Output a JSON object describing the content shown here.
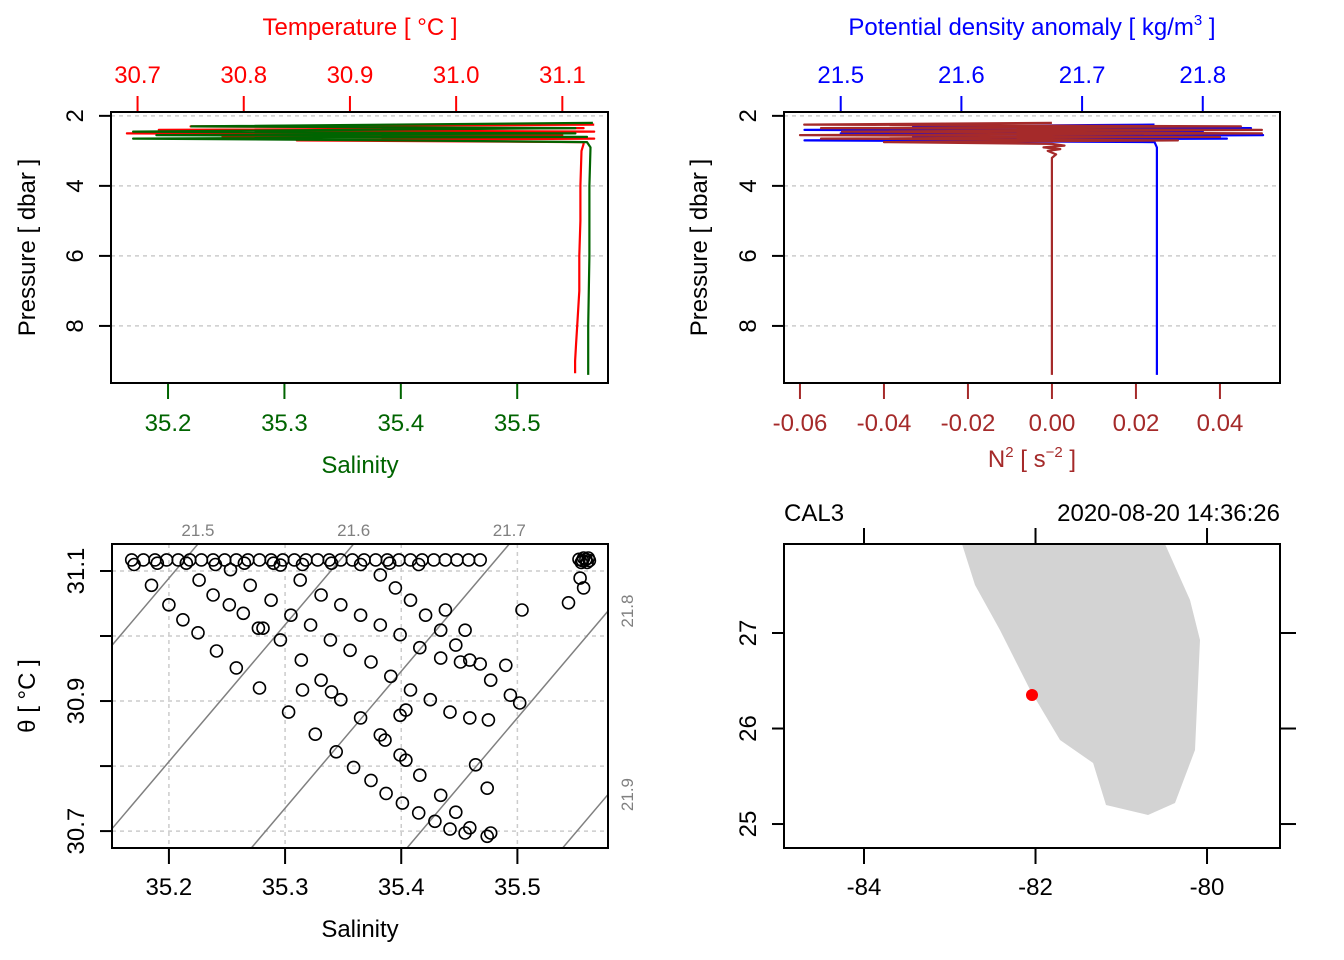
{
  "chart_data": [
    {
      "type": "line",
      "y_axis": {
        "label": "Pressure [ dbar ]",
        "range": [
          9.63,
          1.89
        ],
        "ticks": [
          2,
          4,
          6,
          8
        ],
        "tick_labels": [
          "2",
          "4",
          "6",
          "8"
        ],
        "grid": true
      },
      "top_axis": {
        "label": "Temperature [ °C ]",
        "color": "#ff0000",
        "range": [
          30.675,
          31.143
        ],
        "ticks": [
          30.7,
          30.8,
          30.9,
          31.0,
          31.1
        ],
        "tick_labels": [
          "30.7",
          "30.8",
          "30.9",
          "31.0",
          "31.1"
        ]
      },
      "bottom_axis": {
        "label": "Salinity",
        "color": "#006400",
        "range": [
          35.151,
          35.578
        ],
        "ticks": [
          35.2,
          35.3,
          35.4,
          35.5
        ],
        "tick_labels": [
          "35.2",
          "35.3",
          "35.4",
          "35.5"
        ]
      },
      "series": [
        {
          "axis": "top",
          "color": "#ff0000",
          "points": [
            [
              2.25,
              31.13
            ],
            [
              2.3,
              30.75
            ],
            [
              2.35,
              31.12
            ],
            [
              2.4,
              30.72
            ],
            [
              2.45,
              31.13
            ],
            [
              2.5,
              30.69
            ],
            [
              2.55,
              31.1
            ],
            [
              2.6,
              30.78
            ],
            [
              2.65,
              31.13
            ],
            [
              2.7,
              30.85
            ],
            [
              2.75,
              31.12
            ],
            [
              2.8,
              31.12
            ],
            [
              3.0,
              31.118
            ],
            [
              4,
              31.117
            ],
            [
              5,
              31.117
            ],
            [
              6,
              31.116
            ],
            [
              7,
              31.116
            ],
            [
              8,
              31.114
            ],
            [
              8.5,
              31.113
            ],
            [
              9,
              31.112
            ],
            [
              9.35,
              31.112
            ]
          ]
        },
        {
          "axis": "bottom",
          "color": "#006400",
          "points": [
            [
              2.2,
              35.565
            ],
            [
              2.3,
              35.22
            ],
            [
              2.35,
              35.55
            ],
            [
              2.45,
              35.17
            ],
            [
              2.5,
              35.55
            ],
            [
              2.55,
              35.19
            ],
            [
              2.6,
              35.56
            ],
            [
              2.65,
              35.17
            ],
            [
              2.7,
              35.4
            ],
            [
              2.75,
              35.56
            ],
            [
              2.9,
              35.563
            ],
            [
              4,
              35.562
            ],
            [
              6,
              35.562
            ],
            [
              8,
              35.561
            ],
            [
              9.4,
              35.561
            ]
          ]
        }
      ]
    },
    {
      "type": "line",
      "y_axis": {
        "label": "Pressure [ dbar ]",
        "range": [
          9.63,
          1.89
        ],
        "ticks": [
          2,
          4,
          6,
          8
        ],
        "tick_labels": [
          "2",
          "4",
          "6",
          "8"
        ],
        "grid": true
      },
      "top_axis": {
        "label_parts": [
          "Potential density anomaly [ kg/m",
          "3",
          " ]"
        ],
        "color": "#0000ff",
        "range": [
          21.453,
          21.864
        ],
        "ticks": [
          21.5,
          21.6,
          21.7,
          21.8
        ],
        "tick_labels": [
          "21.5",
          "21.6",
          "21.7",
          "21.8"
        ]
      },
      "bottom_axis": {
        "label_parts": [
          "N",
          "2",
          " [ s",
          "−2",
          " ]"
        ],
        "color": "#a52a2a",
        "range": [
          -0.0638,
          0.0543
        ],
        "ticks": [
          -0.06,
          -0.04,
          -0.02,
          0.0,
          0.02,
          0.04
        ],
        "tick_labels": [
          "-0.06",
          "-0.04",
          "-0.02",
          "0.00",
          "0.02",
          "0.04"
        ]
      },
      "series": [
        {
          "axis": "top",
          "color": "#0000ff",
          "points": [
            [
              2.25,
              21.76
            ],
            [
              2.3,
              21.56
            ],
            [
              2.35,
              21.84
            ],
            [
              2.4,
              21.47
            ],
            [
              2.45,
              21.8
            ],
            [
              2.5,
              21.5
            ],
            [
              2.55,
              21.85
            ],
            [
              2.6,
              21.56
            ],
            [
              2.65,
              21.82
            ],
            [
              2.7,
              21.47
            ],
            [
              2.75,
              21.76
            ],
            [
              2.9,
              21.762
            ],
            [
              4,
              21.762
            ],
            [
              6,
              21.762
            ],
            [
              8,
              21.762
            ],
            [
              9.4,
              21.762
            ]
          ]
        },
        {
          "axis": "bottom",
          "color": "#a52a2a",
          "points": [
            [
              2.2,
              0.0
            ],
            [
              2.25,
              -0.059
            ],
            [
              2.3,
              0.045
            ],
            [
              2.35,
              -0.055
            ],
            [
              2.4,
              0.05
            ],
            [
              2.45,
              -0.05
            ],
            [
              2.5,
              0.05
            ],
            [
              2.55,
              -0.06
            ],
            [
              2.6,
              0.04
            ],
            [
              2.65,
              -0.055
            ],
            [
              2.7,
              0.03
            ],
            [
              2.75,
              -0.04
            ],
            [
              2.8,
              0.0
            ],
            [
              2.85,
              0.003
            ],
            [
              2.9,
              -0.002
            ],
            [
              2.95,
              0.002
            ],
            [
              3.0,
              -0.001
            ],
            [
              3.1,
              0.001
            ],
            [
              3.2,
              0.0
            ],
            [
              6,
              0.0
            ],
            [
              9.4,
              0.0
            ]
          ]
        }
      ]
    },
    {
      "type": "scatter",
      "xlabel": "Salinity",
      "ylabel": "θ [ °C ]",
      "xlim": [
        35.151,
        35.578
      ],
      "ylim": [
        30.674,
        31.1415
      ],
      "x_ticks": [
        35.2,
        35.3,
        35.4,
        35.5
      ],
      "x_tick_labels": [
        "35.2",
        "35.3",
        "35.4",
        "35.5"
      ],
      "y_ticks": [
        30.7,
        30.8,
        30.9,
        31.0,
        31.1
      ],
      "y_tick_labels": [
        "30.7",
        "",
        "30.9",
        "",
        "31.1"
      ],
      "grid": true,
      "isopycnals": [
        {
          "level": 21.5,
          "label": "21.5",
          "label_side": "top"
        },
        {
          "level": 21.6,
          "label": "21.6",
          "label_side": "top"
        },
        {
          "level": 21.7,
          "label": "21.7",
          "label_side": "top"
        },
        {
          "level": 21.8,
          "label": "21.8",
          "label_side": "right"
        },
        {
          "level": 21.9,
          "label": "21.9",
          "label_side": "right"
        }
      ],
      "points": [
        [
          35.168,
          31.117
        ],
        [
          35.178,
          31.117
        ],
        [
          35.188,
          31.117
        ],
        [
          35.198,
          31.117
        ],
        [
          35.208,
          31.117
        ],
        [
          35.218,
          31.117
        ],
        [
          35.228,
          31.117
        ],
        [
          35.238,
          31.117
        ],
        [
          35.248,
          31.117
        ],
        [
          35.258,
          31.117
        ],
        [
          35.268,
          31.117
        ],
        [
          35.278,
          31.117
        ],
        [
          35.288,
          31.117
        ],
        [
          35.298,
          31.117
        ],
        [
          35.308,
          31.117
        ],
        [
          35.318,
          31.117
        ],
        [
          35.328,
          31.117
        ],
        [
          35.338,
          31.117
        ],
        [
          35.348,
          31.117
        ],
        [
          35.358,
          31.117
        ],
        [
          35.368,
          31.117
        ],
        [
          35.378,
          31.117
        ],
        [
          35.388,
          31.117
        ],
        [
          35.398,
          31.117
        ],
        [
          35.408,
          31.117
        ],
        [
          35.418,
          31.117
        ],
        [
          35.428,
          31.117
        ],
        [
          35.438,
          31.117
        ],
        [
          35.448,
          31.117
        ],
        [
          35.458,
          31.117
        ],
        [
          35.468,
          31.117
        ],
        [
          35.17,
          31.11
        ],
        [
          35.19,
          31.112
        ],
        [
          35.215,
          31.112
        ],
        [
          35.24,
          31.11
        ],
        [
          35.265,
          31.112
        ],
        [
          35.29,
          31.112
        ],
        [
          35.315,
          31.11
        ],
        [
          35.34,
          31.112
        ],
        [
          35.365,
          31.11
        ],
        [
          35.39,
          31.112
        ],
        [
          35.415,
          31.11
        ],
        [
          35.553,
          31.118
        ],
        [
          35.556,
          31.116
        ],
        [
          35.559,
          31.118
        ],
        [
          35.562,
          31.116
        ],
        [
          35.557,
          31.12
        ],
        [
          35.561,
          31.12
        ],
        [
          35.555,
          31.113
        ],
        [
          35.56,
          31.113
        ],
        [
          35.185,
          31.078
        ],
        [
          35.2,
          31.048
        ],
        [
          35.212,
          31.025
        ],
        [
          35.225,
          31.005
        ],
        [
          35.241,
          30.977
        ],
        [
          35.258,
          30.951
        ],
        [
          35.278,
          30.92
        ],
        [
          35.303,
          30.883
        ],
        [
          35.326,
          30.849
        ],
        [
          35.344,
          30.822
        ],
        [
          35.359,
          30.798
        ],
        [
          35.374,
          30.778
        ],
        [
          35.387,
          30.758
        ],
        [
          35.401,
          30.743
        ],
        [
          35.415,
          30.728
        ],
        [
          35.429,
          30.715
        ],
        [
          35.442,
          30.703
        ],
        [
          35.455,
          30.697
        ],
        [
          35.474,
          30.692
        ],
        [
          35.226,
          31.086
        ],
        [
          35.238,
          31.063
        ],
        [
          35.252,
          31.048
        ],
        [
          35.264,
          31.035
        ],
        [
          35.277,
          31.012
        ],
        [
          35.296,
          30.994
        ],
        [
          35.314,
          30.963
        ],
        [
          35.331,
          30.932
        ],
        [
          35.348,
          30.902
        ],
        [
          35.365,
          30.874
        ],
        [
          35.382,
          30.848
        ],
        [
          35.399,
          30.817
        ],
        [
          35.416,
          30.786
        ],
        [
          35.434,
          30.755
        ],
        [
          35.447,
          30.729
        ],
        [
          35.459,
          30.705
        ],
        [
          35.477,
          30.697
        ],
        [
          35.253,
          31.102
        ],
        [
          35.27,
          31.078
        ],
        [
          35.288,
          31.055
        ],
        [
          35.305,
          31.032
        ],
        [
          35.322,
          31.017
        ],
        [
          35.339,
          30.994
        ],
        [
          35.356,
          30.978
        ],
        [
          35.374,
          30.96
        ],
        [
          35.391,
          30.938
        ],
        [
          35.408,
          30.917
        ],
        [
          35.425,
          30.902
        ],
        [
          35.442,
          30.883
        ],
        [
          35.459,
          30.874
        ],
        [
          35.475,
          30.871
        ],
        [
          35.296,
          31.109
        ],
        [
          35.313,
          31.086
        ],
        [
          35.331,
          31.063
        ],
        [
          35.348,
          31.048
        ],
        [
          35.365,
          31.032
        ],
        [
          35.382,
          31.017
        ],
        [
          35.399,
          31.002
        ],
        [
          35.416,
          30.982
        ],
        [
          35.434,
          30.966
        ],
        [
          35.451,
          30.96
        ],
        [
          35.468,
          30.957
        ],
        [
          35.49,
          30.955
        ],
        [
          35.382,
          31.094
        ],
        [
          35.395,
          31.074
        ],
        [
          35.408,
          31.055
        ],
        [
          35.421,
          31.032
        ],
        [
          35.434,
          31.009
        ],
        [
          35.447,
          30.986
        ],
        [
          35.459,
          30.963
        ],
        [
          35.477,
          30.932
        ],
        [
          35.494,
          30.909
        ],
        [
          35.502,
          30.897
        ],
        [
          35.281,
          31.012
        ],
        [
          35.315,
          30.917
        ],
        [
          35.34,
          30.914
        ],
        [
          35.386,
          30.84
        ],
        [
          35.404,
          30.809
        ],
        [
          35.404,
          30.886
        ],
        [
          35.399,
          30.878
        ],
        [
          35.504,
          31.04
        ],
        [
          35.544,
          31.051
        ],
        [
          35.554,
          31.089
        ],
        [
          35.557,
          31.074
        ],
        [
          35.464,
          30.802
        ],
        [
          35.474,
          30.766
        ],
        [
          35.455,
          31.009
        ],
        [
          35.438,
          31.04
        ]
      ]
    },
    {
      "type": "map",
      "station": "CAL3",
      "datetime": "2020-08-20 14:36:26",
      "lon_range": [
        -84.933,
        -79.149
      ],
      "lat_range": [
        24.749,
        27.932
      ],
      "lon_ticks": [
        -84,
        -82,
        -80
      ],
      "lon_tick_labels": [
        "-84",
        "-82",
        "-80"
      ],
      "lat_ticks": [
        25,
        26,
        27
      ],
      "lat_tick_labels": [
        "25",
        "26",
        "27"
      ],
      "land_color": "#d3d3d3",
      "station_color": "#ff0000",
      "station_position": {
        "lon": -82.041,
        "lat": 26.351
      },
      "coastline": [
        [
          -82.857,
          27.932
        ],
        [
          -82.706,
          27.503
        ],
        [
          -82.414,
          27.031
        ],
        [
          -82.064,
          26.408
        ],
        [
          -81.714,
          25.88
        ],
        [
          -81.329,
          25.639
        ],
        [
          -81.178,
          25.199
        ],
        [
          -80.688,
          25.094
        ],
        [
          -80.373,
          25.22
        ],
        [
          -80.14,
          25.775
        ],
        [
          -80.082,
          26.927
        ],
        [
          -80.198,
          27.346
        ],
        [
          -80.49,
          27.932
        ]
      ]
    }
  ]
}
